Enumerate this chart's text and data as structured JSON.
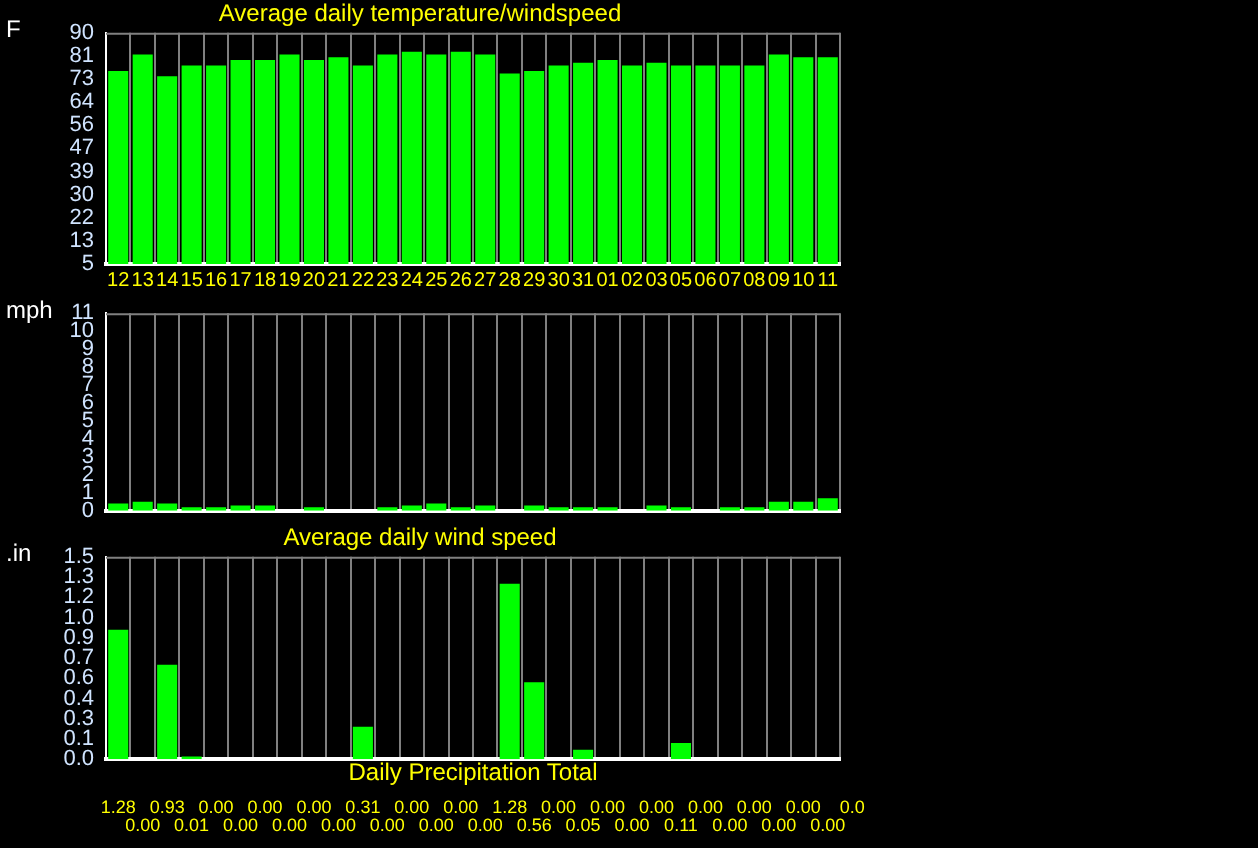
{
  "chart_data": [
    {
      "type": "bar",
      "title": "Average daily temperature/windspeed",
      "ylabel": "F",
      "categories": [
        "12",
        "13",
        "14",
        "15",
        "16",
        "17",
        "18",
        "19",
        "20",
        "21",
        "22",
        "23",
        "24",
        "25",
        "26",
        "27",
        "28",
        "29",
        "30",
        "31",
        "01",
        "02",
        "03",
        "05",
        "06",
        "07",
        "08",
        "09",
        "10",
        "11"
      ],
      "series": [
        {
          "color": "#00ff00",
          "values": [
            76,
            82,
            74,
            78,
            78,
            80,
            80,
            82,
            80,
            81,
            78,
            82,
            83,
            82,
            83,
            82,
            75,
            76,
            78,
            79,
            80,
            78,
            79,
            78,
            78,
            78,
            78,
            82,
            81,
            81
          ]
        }
      ],
      "ylim": [
        5,
        90
      ],
      "yticks": [
        5,
        {
          "value": 13.5,
          "label": "13"
        },
        22,
        {
          "value": 30.5,
          "label": "30"
        },
        39,
        {
          "value": 47.5,
          "label": "47"
        },
        56,
        {
          "value": 64.5,
          "label": "64"
        },
        73,
        {
          "value": 81.5,
          "label": "81"
        },
        90
      ],
      "grid": "x",
      "legend": false
    },
    {
      "type": "bar",
      "ylabel": "mph",
      "categories": [
        "12",
        "13",
        "14",
        "15",
        "16",
        "17",
        "18",
        "19",
        "20",
        "21",
        "22",
        "23",
        "24",
        "25",
        "26",
        "27",
        "28",
        "29",
        "30",
        "31",
        "01",
        "02",
        "03",
        "05",
        "06",
        "07",
        "08",
        "09",
        "10",
        "11"
      ],
      "series": [
        {
          "color": "#00ff00",
          "values": [
            0.4,
            0.5,
            0.4,
            0.2,
            0.2,
            0.3,
            0.3,
            0,
            0.2,
            0,
            0,
            0.2,
            0.3,
            0.4,
            0.2,
            0.3,
            0,
            0.3,
            0.2,
            0.2,
            0.2,
            0,
            0.3,
            0.2,
            0,
            0.2,
            0.2,
            0.5,
            0.5,
            0.7
          ]
        }
      ],
      "ylim": [
        0,
        11
      ],
      "yticks": [
        0,
        1,
        2,
        3,
        4,
        5,
        6,
        7,
        8,
        9,
        10,
        11
      ],
      "grid": "x",
      "legend": false,
      "tick_labels": "y"
    },
    {
      "type": "bar",
      "title": "Average daily wind speed",
      "xlabel": "Daily Precipitation Total",
      "ylabel": ".in",
      "categories": [
        "12",
        "13",
        "14",
        "15",
        "16",
        "17",
        "18",
        "19",
        "20",
        "21",
        "22",
        "23",
        "24",
        "25",
        "26",
        "27",
        "28",
        "29",
        "30",
        "31",
        "01",
        "02",
        "03",
        "05",
        "06",
        "07",
        "08",
        "09",
        "10",
        "11"
      ],
      "series": [
        {
          "color": "#00ff00",
          "values": [
            0.96,
            0,
            0.7,
            0.02,
            0,
            0,
            0,
            0,
            0,
            0,
            0.24,
            0,
            0,
            0,
            0,
            0,
            1.3,
            0.57,
            0,
            0.07,
            0,
            0,
            0,
            0.12,
            0,
            0,
            0,
            0,
            0,
            0
          ]
        }
      ],
      "ylim": [
        0,
        1.5
      ],
      "yticks": [
        {
          "value": 0,
          "label": "0.0"
        },
        {
          "value": 0.15,
          "label": "0.1"
        },
        {
          "value": 0.3,
          "label": "0.3"
        },
        {
          "value": 0.45,
          "label": "0.4"
        },
        {
          "value": 0.6,
          "label": "0.6"
        },
        {
          "value": 0.75,
          "label": "0.7"
        },
        {
          "value": 0.9,
          "label": "0.9"
        },
        {
          "value": 1.05,
          "label": "1.0"
        },
        {
          "value": 1.2,
          "label": "1.2"
        },
        {
          "value": 1.35,
          "label": "1.3"
        },
        {
          "value": 1.5,
          "label": "1.5"
        }
      ],
      "grid": "x",
      "legend": false,
      "tick_labels": "y",
      "annotations": [
        "1.28",
        "0.00",
        "0.93",
        "0.01",
        "0.00",
        "0.00",
        "0.00",
        "0.00",
        "0.00",
        "0.00",
        "0.31",
        "0.00",
        "0.00",
        "0.00",
        "0.00",
        "0.00",
        "1.28",
        "0.56",
        "0.00",
        "0.05",
        "0.00",
        "0.00",
        "0.00",
        "0.11",
        "0.00",
        "0.00",
        "0.00",
        "0.00",
        "0.00",
        "0.00",
        "0.0"
      ]
    }
  ]
}
